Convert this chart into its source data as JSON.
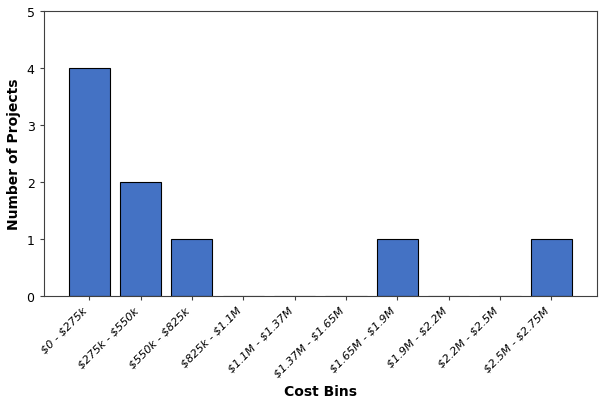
{
  "categories": [
    "$0 - $275k",
    "$275k - $550k",
    "$550k - $825k",
    "$825k - $1.1M",
    "$1.1M - $1.37M",
    "$1.37M - $1.65M",
    "$1.65M - $1.9M",
    "$1.9M - $2.2M",
    "$2.2M - $2.5M",
    "$2.5M - $2.75M"
  ],
  "values": [
    4,
    2,
    1,
    0,
    0,
    0,
    1,
    0,
    0,
    1
  ],
  "bar_color": "#4472C4",
  "bar_edge_color": "#000000",
  "bar_edge_width": 0.8,
  "xlabel": "Cost Bins",
  "ylabel": "Number of Projects",
  "ylim": [
    0,
    5
  ],
  "yticks": [
    0,
    1,
    2,
    3,
    4,
    5
  ],
  "xlabel_fontsize": 10,
  "ylabel_fontsize": 10,
  "tick_label_fontsize": 8,
  "background_color": "#ffffff",
  "figure_facecolor": "#ffffff"
}
